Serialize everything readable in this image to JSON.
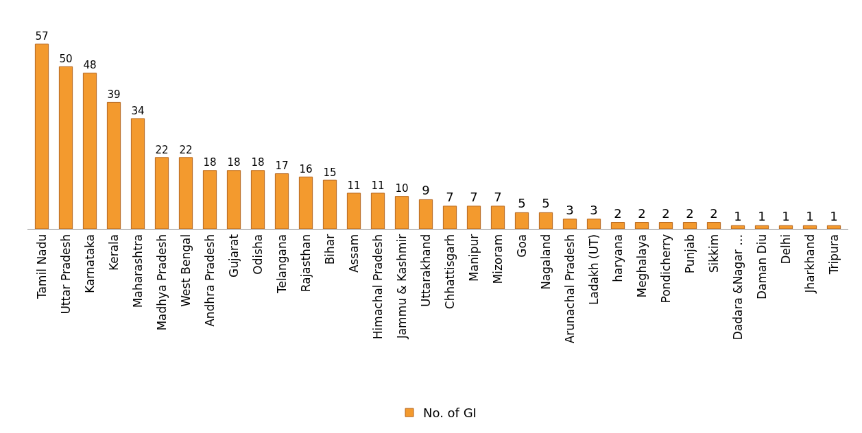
{
  "chart_data": {
    "type": "bar",
    "categories": [
      "Tamil Nadu",
      "Uttar Pradesh",
      "Karnataka",
      "Kerala",
      "Maharashtra",
      "Madhya Pradesh",
      "West Bengal",
      "Andhra Pradesh",
      "Gujarat",
      "Odisha",
      "Telangana",
      "Rajasthan",
      "Bihar",
      "Assam",
      "Himachal Pradesh",
      "Jammu & Kashmir",
      "Uttarakhand",
      "Chhattisgarh",
      "Manipur",
      "Mizoram",
      "Goa",
      "Nagaland",
      "Arunachal Pradesh",
      "Ladakh (UT)",
      "haryana",
      "Meghalaya",
      "Pondicherry",
      "Punjab",
      "Sikkim",
      "Dadara &Nagar …",
      "Daman Diu",
      "Delhi",
      "Jharkhand",
      "Tripura"
    ],
    "series": [
      {
        "name": "No. of GI",
        "color": "#f39a2e",
        "values": [
          57,
          50,
          48,
          39,
          34,
          22,
          22,
          18,
          18,
          18,
          17,
          16,
          15,
          11,
          11,
          10,
          9,
          7,
          7,
          7,
          5,
          5,
          3,
          3,
          2,
          2,
          2,
          2,
          2,
          1,
          1,
          1,
          1,
          1
        ]
      }
    ],
    "data_labels": true,
    "legend": "bottom"
  }
}
